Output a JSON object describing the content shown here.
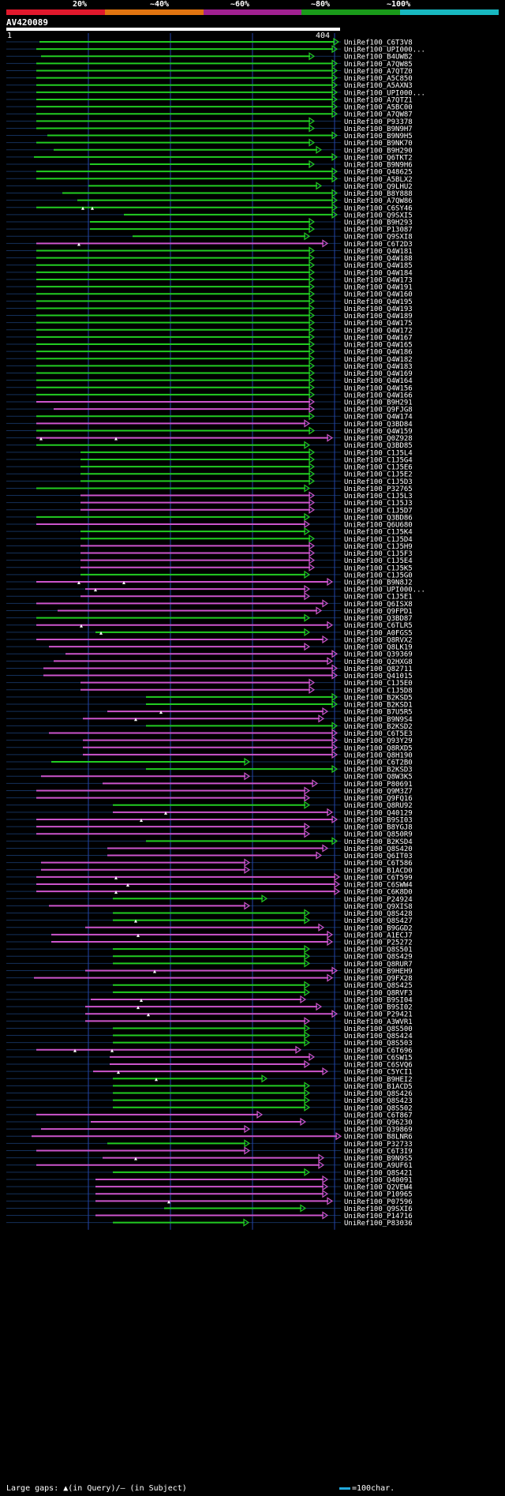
{
  "chart_data": {
    "type": "alignment-overview",
    "query": {
      "name": "AV420089",
      "start": "1",
      "end": "404"
    },
    "identity_legend": [
      {
        "label": "20%",
        "color": "#e0182c"
      },
      {
        "label": "~40%",
        "color": "#e07410"
      },
      {
        "label": "~60%",
        "color": "#a02090"
      },
      {
        "label": "~80%",
        "color": "#1a9a1a"
      },
      {
        "label": "~100%",
        "color": "#18b8c0"
      }
    ],
    "colors": {
      "green": "#22cc22",
      "magenta": "#cc55cc",
      "gridline": "#2244aa",
      "grid": "#14305a"
    },
    "hits": [
      {
        "label": "UniRef100_C6T3V8",
        "x1": 50,
        "x2": 428,
        "c": "g"
      },
      {
        "label": "UniRef100_UPI000...",
        "x1": 46,
        "x2": 426,
        "c": "g"
      },
      {
        "label": "UniRef100_B4UWB2",
        "x1": 52,
        "x2": 397,
        "c": "g"
      },
      {
        "label": "UniRef100_A7QW85",
        "x1": 46,
        "x2": 426,
        "c": "g"
      },
      {
        "label": "UniRef100_A7QTZ0",
        "x1": 46,
        "x2": 426,
        "c": "g"
      },
      {
        "label": "UniRef100_A5C850",
        "x1": 46,
        "x2": 426,
        "c": "g"
      },
      {
        "label": "UniRef100_A5AXN3",
        "x1": 46,
        "x2": 426,
        "c": "g"
      },
      {
        "label": "UniRef100_UPI000...",
        "x1": 46,
        "x2": 426,
        "c": "g"
      },
      {
        "label": "UniRef100_A7QTZ1",
        "x1": 46,
        "x2": 426,
        "c": "g"
      },
      {
        "label": "UniRef100_A5BC00",
        "x1": 46,
        "x2": 426,
        "c": "g"
      },
      {
        "label": "UniRef100_A7QW87",
        "x1": 46,
        "x2": 426,
        "c": "g"
      },
      {
        "label": "UniRef100_P93378",
        "x1": 46,
        "x2": 397,
        "c": "g"
      },
      {
        "label": "UniRef100_B9N9H7",
        "x1": 46,
        "x2": 397,
        "c": "g"
      },
      {
        "label": "UniRef100_B9N9H5",
        "x1": 60,
        "x2": 426,
        "c": "g"
      },
      {
        "label": "UniRef100_B9NK70",
        "x1": 46,
        "x2": 397,
        "c": "g"
      },
      {
        "label": "UniRef100_B9H290",
        "x1": 68,
        "x2": 406,
        "c": "g"
      },
      {
        "label": "UniRef100_Q6TKT2",
        "x1": 43,
        "x2": 426,
        "c": "g"
      },
      {
        "label": "UniRef100_B9N9H6",
        "x1": 114,
        "x2": 397,
        "c": "g"
      },
      {
        "label": "UniRef100_Q48625",
        "x1": 46,
        "x2": 426,
        "c": "g"
      },
      {
        "label": "UniRef100_A5BLX2",
        "x1": 46,
        "x2": 426,
        "c": "g"
      },
      {
        "label": "UniRef100_Q9LHU2",
        "x1": 112,
        "x2": 406,
        "c": "g"
      },
      {
        "label": "UniRef100_B8Y888",
        "x1": 79,
        "x2": 426,
        "c": "g"
      },
      {
        "label": "UniRef100_A7QW86",
        "x1": 98,
        "x2": 426,
        "c": "g"
      },
      {
        "label": "UniRef100_C6SY46",
        "x1": 46,
        "x2": 426,
        "c": "g",
        "gap": [
          105,
          117
        ]
      },
      {
        "label": "UniRef100_Q9SXI5",
        "x1": 157,
        "x2": 426,
        "c": "g"
      },
      {
        "label": "UniRef100_B9H293",
        "x1": 114,
        "x2": 397,
        "c": "g"
      },
      {
        "label": "UniRef100_P13087",
        "x1": 114,
        "x2": 397,
        "c": "g"
      },
      {
        "label": "UniRef100_Q9SXI8",
        "x1": 168,
        "x2": 391,
        "c": "g"
      },
      {
        "label": "UniRef100_C6T2D3",
        "x1": 46,
        "x2": 414,
        "c": "m",
        "gap": [
          100
        ]
      },
      {
        "label": "UniRef100_Q4W181",
        "x1": 46,
        "x2": 397,
        "c": "g"
      },
      {
        "label": "UniRef100_Q4W188",
        "x1": 46,
        "x2": 397,
        "c": "g"
      },
      {
        "label": "UniRef100_Q4W185",
        "x1": 46,
        "x2": 397,
        "c": "g"
      },
      {
        "label": "UniRef100_Q4W184",
        "x1": 46,
        "x2": 397,
        "c": "g"
      },
      {
        "label": "UniRef100_Q4W173",
        "x1": 46,
        "x2": 397,
        "c": "g"
      },
      {
        "label": "UniRef100_Q4W191",
        "x1": 46,
        "x2": 397,
        "c": "g"
      },
      {
        "label": "UniRef100_Q4W160",
        "x1": 46,
        "x2": 397,
        "c": "g"
      },
      {
        "label": "UniRef100_Q4W195",
        "x1": 46,
        "x2": 397,
        "c": "g"
      },
      {
        "label": "UniRef100_Q4W193",
        "x1": 46,
        "x2": 397,
        "c": "g"
      },
      {
        "label": "UniRef100_Q4W189",
        "x1": 46,
        "x2": 397,
        "c": "g"
      },
      {
        "label": "UniRef100_Q4W175",
        "x1": 46,
        "x2": 397,
        "c": "g"
      },
      {
        "label": "UniRef100_Q4W172",
        "x1": 46,
        "x2": 397,
        "c": "g"
      },
      {
        "label": "UniRef100_Q4W167",
        "x1": 46,
        "x2": 397,
        "c": "g"
      },
      {
        "label": "UniRef100_Q4W165",
        "x1": 46,
        "x2": 397,
        "c": "g"
      },
      {
        "label": "UniRef100_Q4W186",
        "x1": 46,
        "x2": 397,
        "c": "g"
      },
      {
        "label": "UniRef100_Q4W182",
        "x1": 46,
        "x2": 397,
        "c": "g"
      },
      {
        "label": "UniRef100_Q4W183",
        "x1": 46,
        "x2": 397,
        "c": "g"
      },
      {
        "label": "UniRef100_Q4W169",
        "x1": 46,
        "x2": 397,
        "c": "g"
      },
      {
        "label": "UniRef100_Q4W164",
        "x1": 46,
        "x2": 397,
        "c": "g"
      },
      {
        "label": "UniRef100_Q4W156",
        "x1": 46,
        "x2": 397,
        "c": "g"
      },
      {
        "label": "UniRef100_Q4W166",
        "x1": 46,
        "x2": 397,
        "c": "g"
      },
      {
        "label": "UniRef100_B9H291",
        "x1": 46,
        "x2": 397,
        "c": "m"
      },
      {
        "label": "UniRef100_Q9FJG8",
        "x1": 68,
        "x2": 397,
        "c": "m"
      },
      {
        "label": "UniRef100_Q4W174",
        "x1": 46,
        "x2": 397,
        "c": "g"
      },
      {
        "label": "UniRef100_Q3BD84",
        "x1": 46,
        "x2": 391,
        "c": "m"
      },
      {
        "label": "UniRef100_Q4W159",
        "x1": 46,
        "x2": 397,
        "c": "g"
      },
      {
        "label": "UniRef100_Q0Z928",
        "x1": 46,
        "x2": 420,
        "c": "m",
        "gap": [
          52,
          147
        ]
      },
      {
        "label": "UniRef100_Q3BD85",
        "x1": 46,
        "x2": 391,
        "c": "g"
      },
      {
        "label": "UniRef100_C1J5L4",
        "x1": 102,
        "x2": 397,
        "c": "g"
      },
      {
        "label": "UniRef100_C1J5G4",
        "x1": 102,
        "x2": 397,
        "c": "g"
      },
      {
        "label": "UniRef100_C1J5E6",
        "x1": 102,
        "x2": 397,
        "c": "g"
      },
      {
        "label": "UniRef100_C1J5E2",
        "x1": 102,
        "x2": 397,
        "c": "g"
      },
      {
        "label": "UniRef100_C1J5D3",
        "x1": 102,
        "x2": 397,
        "c": "g"
      },
      {
        "label": "UniRef100_P32765",
        "x1": 46,
        "x2": 391,
        "c": "g"
      },
      {
        "label": "UniRef100_C1J5L3",
        "x1": 102,
        "x2": 397,
        "c": "m"
      },
      {
        "label": "UniRef100_C1J5J3",
        "x1": 102,
        "x2": 397,
        "c": "m"
      },
      {
        "label": "UniRef100_C1J5D7",
        "x1": 102,
        "x2": 397,
        "c": "m"
      },
      {
        "label": "UniRef100_Q3BD86",
        "x1": 46,
        "x2": 391,
        "c": "g"
      },
      {
        "label": "UniRef100_Q6U680",
        "x1": 46,
        "x2": 391,
        "c": "m"
      },
      {
        "label": "UniRef100_C1J5K4",
        "x1": 102,
        "x2": 391,
        "c": "g"
      },
      {
        "label": "UniRef100_C1J5D4",
        "x1": 102,
        "x2": 397,
        "c": "g"
      },
      {
        "label": "UniRef100_C1J5H9",
        "x1": 102,
        "x2": 397,
        "c": "m"
      },
      {
        "label": "UniRef100_C1J5F3",
        "x1": 102,
        "x2": 397,
        "c": "m"
      },
      {
        "label": "UniRef100_C1J5E4",
        "x1": 102,
        "x2": 397,
        "c": "m"
      },
      {
        "label": "UniRef100_C1J5K5",
        "x1": 102,
        "x2": 397,
        "c": "m"
      },
      {
        "label": "UniRef100_C1J5G0",
        "x1": 102,
        "x2": 391,
        "c": "g"
      },
      {
        "label": "UniRef100_B9N8J2",
        "x1": 46,
        "x2": 420,
        "c": "m",
        "gap": [
          100,
          157
        ]
      },
      {
        "label": "UniRef100_UPI000...",
        "x1": 108,
        "x2": 391,
        "c": "m",
        "gap": [
          121
        ]
      },
      {
        "label": "UniRef100_C1J5E1",
        "x1": 102,
        "x2": 391,
        "c": "m"
      },
      {
        "label": "UniRef100_Q6ISX8",
        "x1": 46,
        "x2": 414,
        "c": "m"
      },
      {
        "label": "UniRef100_Q9FPD1",
        "x1": 73,
        "x2": 406,
        "c": "m"
      },
      {
        "label": "UniRef100_Q3BD87",
        "x1": 46,
        "x2": 391,
        "c": "g"
      },
      {
        "label": "UniRef100_C6TLR5",
        "x1": 46,
        "x2": 420,
        "c": "m",
        "gap": [
          103
        ]
      },
      {
        "label": "UniRef100_A0FGS5",
        "x1": 121,
        "x2": 391,
        "c": "g",
        "gap": [
          128
        ]
      },
      {
        "label": "UniRef100_Q8RVX2",
        "x1": 46,
        "x2": 414,
        "c": "m"
      },
      {
        "label": "UniRef100_Q8LK19",
        "x1": 62,
        "x2": 391,
        "c": "m"
      },
      {
        "label": "UniRef100_Q39369",
        "x1": 83,
        "x2": 426,
        "c": "m"
      },
      {
        "label": "UniRef100_Q2HXG8",
        "x1": 68,
        "x2": 420,
        "c": "m"
      },
      {
        "label": "UniRef100_Q82711",
        "x1": 55,
        "x2": 426,
        "c": "m"
      },
      {
        "label": "UniRef100_Q41015",
        "x1": 55,
        "x2": 426,
        "c": "m"
      },
      {
        "label": "UniRef100_C1J5E0",
        "x1": 102,
        "x2": 397,
        "c": "m"
      },
      {
        "label": "UniRef100_C1J5D8",
        "x1": 102,
        "x2": 397,
        "c": "m"
      },
      {
        "label": "UniRef100_B2KSD5",
        "x1": 185,
        "x2": 426,
        "c": "g"
      },
      {
        "label": "UniRef100_B2KSD1",
        "x1": 185,
        "x2": 426,
        "c": "g"
      },
      {
        "label": "UniRef100_B7U5R5",
        "x1": 136,
        "x2": 414,
        "c": "m",
        "gap": [
          204
        ]
      },
      {
        "label": "UniRef100_B9N9S4",
        "x1": 105,
        "x2": 409,
        "c": "m",
        "gap": [
          172
        ]
      },
      {
        "label": "UniRef100_B2KSD2",
        "x1": 185,
        "x2": 426,
        "c": "g"
      },
      {
        "label": "UniRef100_C6T5E3",
        "x1": 62,
        "x2": 426,
        "c": "m"
      },
      {
        "label": "UniRef100_Q93Y29",
        "x1": 105,
        "x2": 426,
        "c": "m"
      },
      {
        "label": "UniRef100_Q8RXD5",
        "x1": 105,
        "x2": 426,
        "c": "m"
      },
      {
        "label": "UniRef100_Q8H190",
        "x1": 105,
        "x2": 426,
        "c": "m"
      },
      {
        "label": "UniRef100_C6T2B0",
        "x1": 65,
        "x2": 315,
        "c": "g"
      },
      {
        "label": "UniRef100_B2KSD3",
        "x1": 185,
        "x2": 426,
        "c": "g"
      },
      {
        "label": "UniRef100_Q8W3K5",
        "x1": 52,
        "x2": 315,
        "c": "m"
      },
      {
        "label": "UniRef100_P80691",
        "x1": 130,
        "x2": 401,
        "c": "m"
      },
      {
        "label": "UniRef100_Q9M3Z7",
        "x1": 46,
        "x2": 391,
        "c": "m"
      },
      {
        "label": "UniRef100_Q9FQ16",
        "x1": 46,
        "x2": 391,
        "c": "m"
      },
      {
        "label": "UniRef100_Q8RU92",
        "x1": 143,
        "x2": 391,
        "c": "g"
      },
      {
        "label": "UniRef100_Q40129",
        "x1": 143,
        "x2": 420,
        "c": "m",
        "gap": [
          210
        ]
      },
      {
        "label": "UniRef100_B9SI03",
        "x1": 46,
        "x2": 426,
        "c": "m",
        "gap": [
          179
        ]
      },
      {
        "label": "UniRef100_B8YGJ8",
        "x1": 46,
        "x2": 391,
        "c": "m"
      },
      {
        "label": "UniRef100_Q850R9",
        "x1": 46,
        "x2": 391,
        "c": "m"
      },
      {
        "label": "UniRef100_B2KSD4",
        "x1": 185,
        "x2": 426,
        "c": "g"
      },
      {
        "label": "UniRef100_Q8S420",
        "x1": 136,
        "x2": 414,
        "c": "m"
      },
      {
        "label": "UniRef100_Q6IT03",
        "x1": 136,
        "x2": 406,
        "c": "m"
      },
      {
        "label": "UniRef100_C6T586",
        "x1": 52,
        "x2": 315,
        "c": "m"
      },
      {
        "label": "UniRef100_B1ACD0",
        "x1": 52,
        "x2": 315,
        "c": "m"
      },
      {
        "label": "UniRef100_C6T599",
        "x1": 46,
        "x2": 429,
        "c": "m",
        "gap": [
          147
        ]
      },
      {
        "label": "UniRef100_C6SWW4",
        "x1": 46,
        "x2": 429,
        "c": "m",
        "gap": [
          162
        ]
      },
      {
        "label": "UniRef100_C6K8D0",
        "x1": 46,
        "x2": 429,
        "c": "m",
        "gap": [
          147
        ]
      },
      {
        "label": "UniRef100_P24924",
        "x1": 143,
        "x2": 337,
        "c": "g"
      },
      {
        "label": "UniRef100_Q9XIS8",
        "x1": 62,
        "x2": 315,
        "c": "m"
      },
      {
        "label": "UniRef100_Q8S428",
        "x1": 143,
        "x2": 391,
        "c": "g"
      },
      {
        "label": "UniRef100_Q8S427",
        "x1": 143,
        "x2": 391,
        "c": "g",
        "gap": [
          172
        ]
      },
      {
        "label": "UniRef100_B9GGD2",
        "x1": 108,
        "x2": 409,
        "c": "m"
      },
      {
        "label": "UniRef100_A1ECJ7",
        "x1": 65,
        "x2": 420,
        "c": "m",
        "gap": [
          175
        ]
      },
      {
        "label": "UniRef100_P25272",
        "x1": 65,
        "x2": 420,
        "c": "m"
      },
      {
        "label": "UniRef100_Q8S501",
        "x1": 143,
        "x2": 391,
        "c": "g"
      },
      {
        "label": "UniRef100_Q8S429",
        "x1": 143,
        "x2": 391,
        "c": "g"
      },
      {
        "label": "UniRef100_Q8RUR7",
        "x1": 143,
        "x2": 391,
        "c": "g"
      },
      {
        "label": "UniRef100_B9HEH9",
        "x1": 108,
        "x2": 426,
        "c": "m",
        "gap": [
          196
        ]
      },
      {
        "label": "UniRef100_Q9FX28",
        "x1": 43,
        "x2": 420,
        "c": "m"
      },
      {
        "label": "UniRef100_Q8S425",
        "x1": 143,
        "x2": 391,
        "c": "g"
      },
      {
        "label": "UniRef100_Q8RVF3",
        "x1": 143,
        "x2": 391,
        "c": "g"
      },
      {
        "label": "UniRef100_B9SI04",
        "x1": 115,
        "x2": 386,
        "c": "m",
        "gap": [
          179
        ]
      },
      {
        "label": "UniRef100_B9SI02",
        "x1": 108,
        "x2": 406,
        "c": "m",
        "gap": [
          175
        ]
      },
      {
        "label": "UniRef100_P29421",
        "x1": 108,
        "x2": 426,
        "c": "m",
        "gap": [
          188
        ]
      },
      {
        "label": "UniRef100_A3WVR1",
        "x1": 108,
        "x2": 391,
        "c": "m"
      },
      {
        "label": "UniRef100_Q8S500",
        "x1": 143,
        "x2": 391,
        "c": "g"
      },
      {
        "label": "UniRef100_Q8S424",
        "x1": 143,
        "x2": 391,
        "c": "g"
      },
      {
        "label": "UniRef100_Q8S503",
        "x1": 143,
        "x2": 391,
        "c": "g"
      },
      {
        "label": "UniRef100_C6T696",
        "x1": 46,
        "x2": 380,
        "c": "m",
        "gap": [
          95,
          142
        ]
      },
      {
        "label": "UniRef100_C6SW15",
        "x1": 139,
        "x2": 397,
        "c": "m"
      },
      {
        "label": "UniRef100_C6SVQ6",
        "x1": 139,
        "x2": 391,
        "c": "m"
      },
      {
        "label": "UniRef100_C5YCI1",
        "x1": 118,
        "x2": 414,
        "c": "m",
        "gap": [
          150
        ]
      },
      {
        "label": "UniRef100_B9HEI2",
        "x1": 143,
        "x2": 337,
        "c": "g",
        "gap": [
          198
        ]
      },
      {
        "label": "UniRef100_B1ACD5",
        "x1": 143,
        "x2": 391,
        "c": "g"
      },
      {
        "label": "UniRef100_Q8S426",
        "x1": 143,
        "x2": 391,
        "c": "g"
      },
      {
        "label": "UniRef100_Q8S423",
        "x1": 143,
        "x2": 391,
        "c": "g"
      },
      {
        "label": "UniRef100_Q8S502",
        "x1": 143,
        "x2": 391,
        "c": "g"
      },
      {
        "label": "UniRef100_C6T867",
        "x1": 46,
        "x2": 331,
        "c": "m"
      },
      {
        "label": "UniRef100_Q96230",
        "x1": 115,
        "x2": 386,
        "c": "m"
      },
      {
        "label": "UniRef100_Q39869",
        "x1": 52,
        "x2": 315,
        "c": "m"
      },
      {
        "label": "UniRef100_B8LNR6",
        "x1": 40,
        "x2": 431,
        "c": "m"
      },
      {
        "label": "UniRef100_P32733",
        "x1": 136,
        "x2": 315,
        "c": "g"
      },
      {
        "label": "UniRef100_C6T3I9",
        "x1": 46,
        "x2": 315,
        "c": "m"
      },
      {
        "label": "UniRef100_B9N9S5",
        "x1": 130,
        "x2": 409,
        "c": "m",
        "gap": [
          172
        ]
      },
      {
        "label": "UniRef100_A9UF61",
        "x1": 46,
        "x2": 409,
        "c": "m"
      },
      {
        "label": "UniRef100_Q8S421",
        "x1": 143,
        "x2": 391,
        "c": "g"
      },
      {
        "label": "UniRef100_Q40091",
        "x1": 121,
        "x2": 414,
        "c": "m"
      },
      {
        "label": "UniRef100_Q2VEW4",
        "x1": 121,
        "x2": 414,
        "c": "m"
      },
      {
        "label": "UniRef100_P10965",
        "x1": 121,
        "x2": 414,
        "c": "m"
      },
      {
        "label": "UniRef100_P07596",
        "x1": 121,
        "x2": 420,
        "c": "m",
        "gap": [
          214
        ]
      },
      {
        "label": "UniRef100_Q9SXI6",
        "x1": 208,
        "x2": 386,
        "c": "g"
      },
      {
        "label": "UniRef100_P14716",
        "x1": 121,
        "x2": 414,
        "c": "m"
      },
      {
        "label": "UniRef100_P83036",
        "x1": 143,
        "x2": 314,
        "c": "g"
      }
    ]
  },
  "footer": {
    "legend": "Large gaps: ▲(in Query)/— (in Subject)",
    "scale": "=100char."
  }
}
